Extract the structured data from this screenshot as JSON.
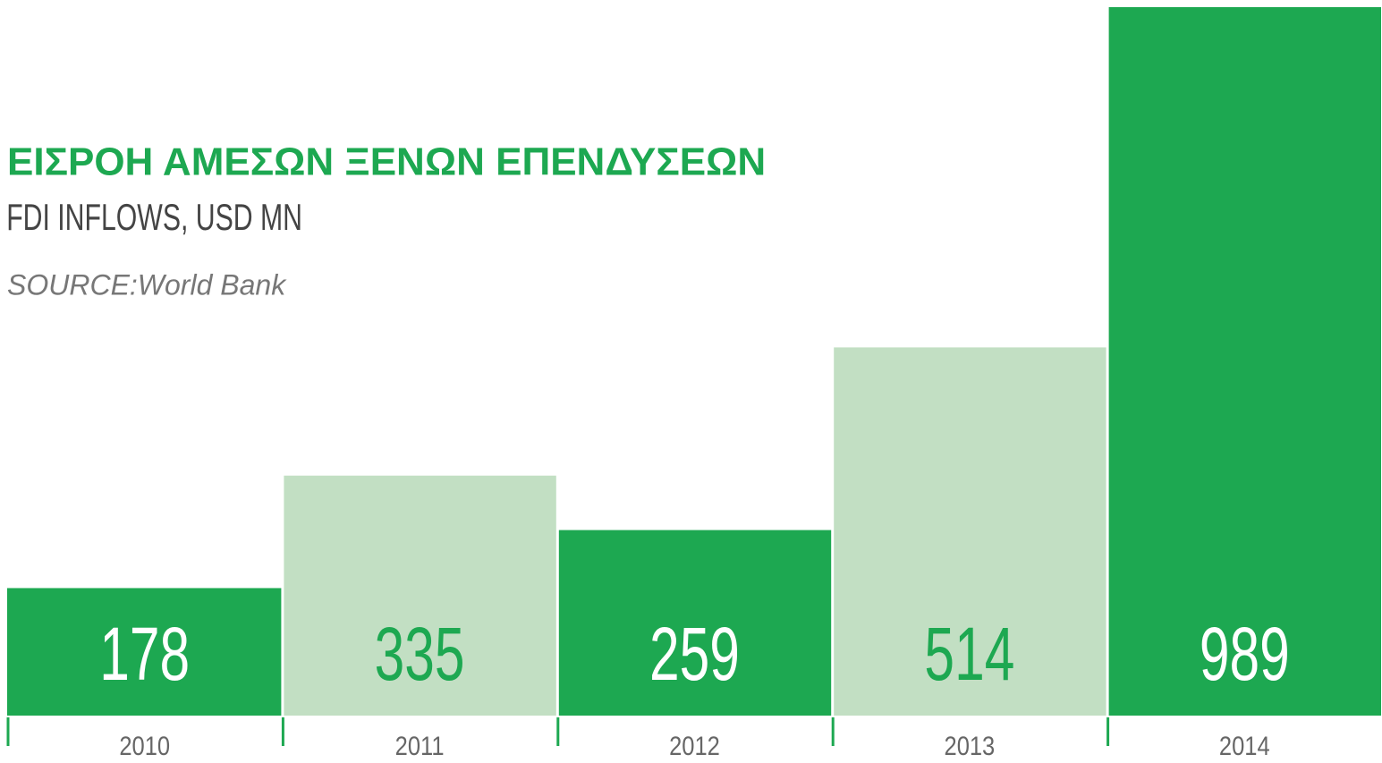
{
  "chart_data": {
    "type": "bar",
    "title": "ΕΙΣΡΟΗ ΑΜΕΣΩΝ ΞΕΝΩΝ ΕΠΕΝΔΥΣΕΩΝ",
    "subtitle": "FDI INFLOWS, USD MN",
    "source": "SOURCE:World Bank",
    "categories": [
      "2010",
      "2011",
      "2012",
      "2013",
      "2014"
    ],
    "values": [
      178,
      335,
      259,
      514,
      989
    ],
    "colors": [
      "#1da851",
      "#c2dfc3",
      "#1da851",
      "#c2dfc3",
      "#1da851"
    ],
    "label_colors": [
      "#ffffff",
      "#1da851",
      "#ffffff",
      "#1da851",
      "#ffffff"
    ]
  }
}
